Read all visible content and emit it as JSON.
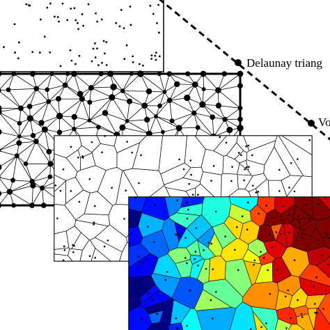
{
  "annotations": [
    "Delaunay triang",
    "Vo"
  ]
}
